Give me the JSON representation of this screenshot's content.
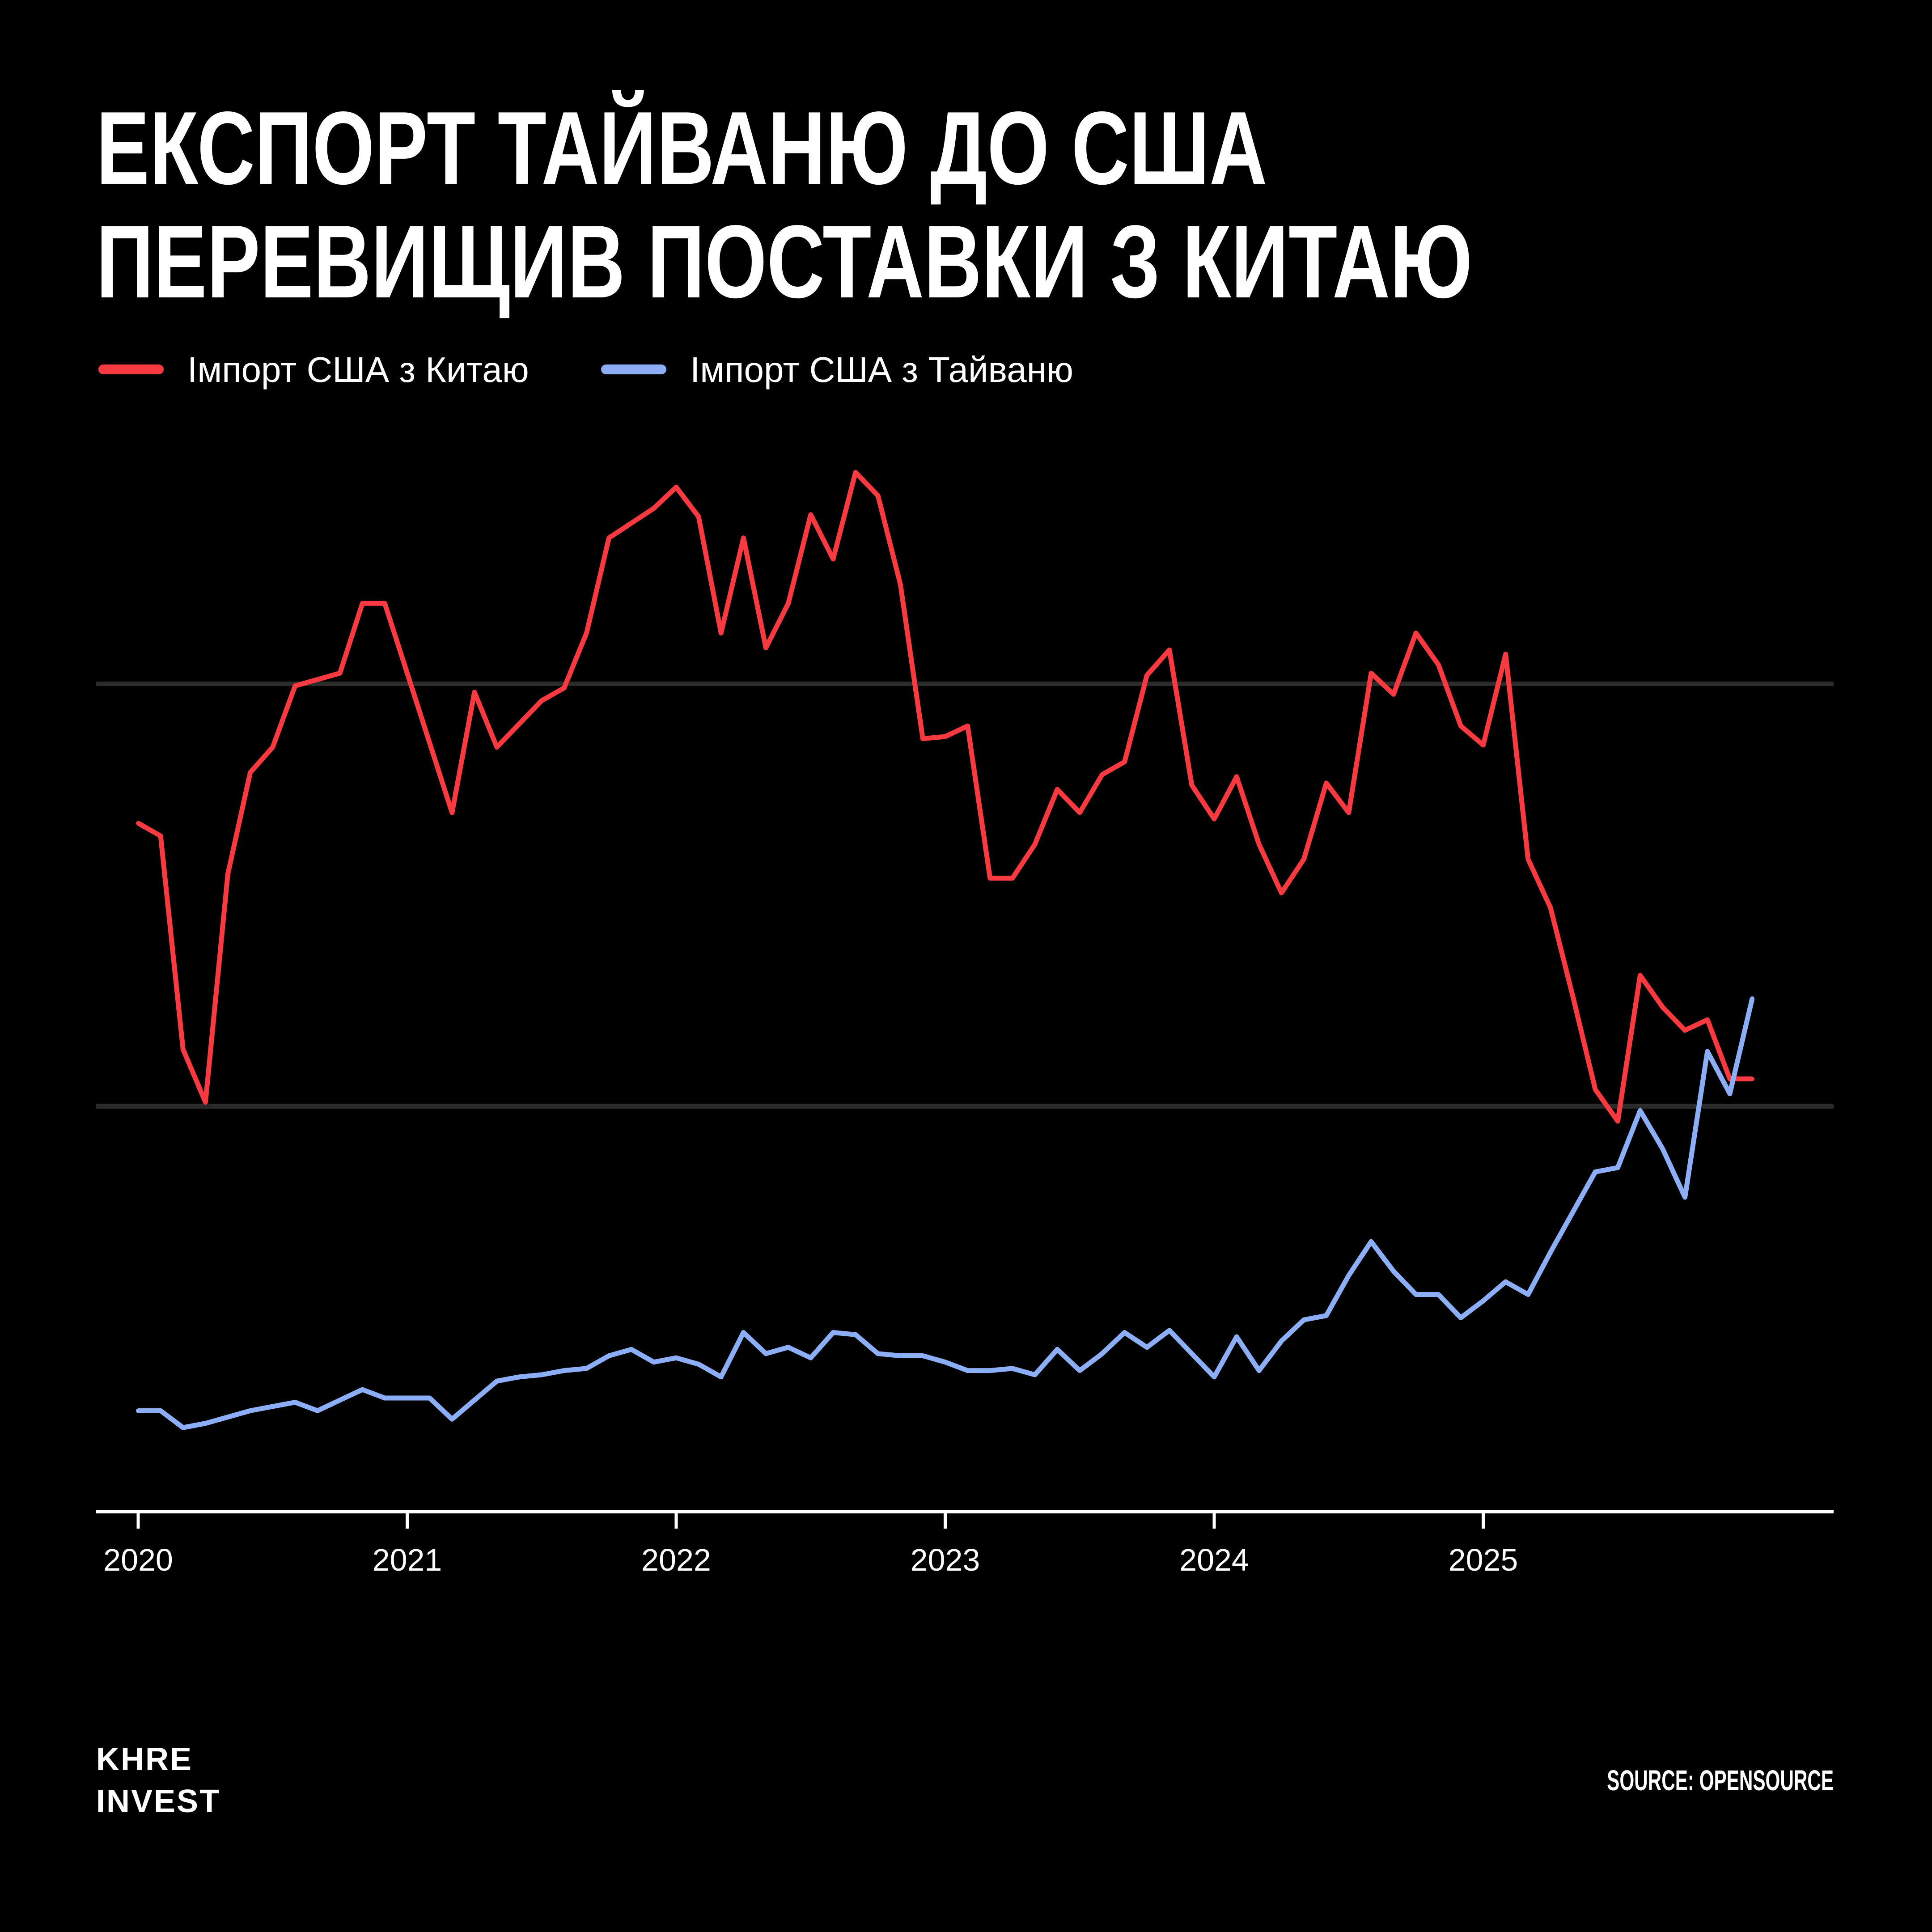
{
  "colors": {
    "background": "#000000",
    "text": "#FFFFFF",
    "grid": "#2A2A2A",
    "axis": "#FFFFFF"
  },
  "chart_data": {
    "type": "line",
    "title_lines": [
      "ЕКСПОРТ ТАЙВАНЮ ДО США",
      "ПЕРЕВИЩИВ ПОСТАВКИ З КИТАЮ"
    ],
    "legend": "top-left",
    "grid": true,
    "y_gridlines": [
      20,
      40
    ],
    "ylim": [
      0,
      55
    ],
    "x_ticks": [
      "2020",
      "2021",
      "2022",
      "2023",
      "2024",
      "2025"
    ],
    "x": [
      "2020-01",
      "2020-02",
      "2020-03",
      "2020-04",
      "2020-05",
      "2020-06",
      "2020-07",
      "2020-08",
      "2020-09",
      "2020-10",
      "2020-11",
      "2020-12",
      "2021-01",
      "2021-02",
      "2021-03",
      "2021-04",
      "2021-05",
      "2021-06",
      "2021-07",
      "2021-08",
      "2021-09",
      "2021-10",
      "2021-11",
      "2021-12",
      "2022-01",
      "2022-02",
      "2022-03",
      "2022-04",
      "2022-05",
      "2022-06",
      "2022-07",
      "2022-08",
      "2022-09",
      "2022-10",
      "2022-11",
      "2022-12",
      "2023-01",
      "2023-02",
      "2023-03",
      "2023-04",
      "2023-05",
      "2023-06",
      "2023-07",
      "2023-08",
      "2023-09",
      "2023-10",
      "2023-11",
      "2023-12",
      "2024-01",
      "2024-02",
      "2024-03",
      "2024-04",
      "2024-05",
      "2024-06",
      "2024-07",
      "2024-08",
      "2024-09",
      "2024-10",
      "2024-11",
      "2024-12",
      "2025-01",
      "2025-02",
      "2025-03",
      "2025-04",
      "2025-05",
      "2025-06",
      "2025-07",
      "2025-08",
      "2025-09",
      "2025-10",
      "2025-11",
      "2025-12",
      "2026-01"
    ],
    "series": [
      {
        "name": "Імпорт США з Китаю",
        "color": "#F8393F",
        "values": [
          33.4,
          32.8,
          22.7,
          20.2,
          31.0,
          35.8,
          37.0,
          39.9,
          40.2,
          40.5,
          43.8,
          43.8,
          40.5,
          37.2,
          33.9,
          39.6,
          37.0,
          38.1,
          39.2,
          39.8,
          42.4,
          46.9,
          47.6,
          48.3,
          49.3,
          47.9,
          42.4,
          46.9,
          41.7,
          43.8,
          48.0,
          45.9,
          50.0,
          48.9,
          44.7,
          37.4,
          37.5,
          38.0,
          30.8,
          30.8,
          32.4,
          35.0,
          33.9,
          35.7,
          36.3,
          40.4,
          41.6,
          35.2,
          33.6,
          35.6,
          32.4,
          30.1,
          31.7,
          35.3,
          33.9,
          40.5,
          39.5,
          42.4,
          40.9,
          38.0,
          37.1,
          41.4,
          31.7,
          29.4,
          25.2,
          20.8,
          19.3,
          26.2,
          24.7,
          23.6,
          24.1,
          21.3,
          21.3
        ]
      },
      {
        "name": "Імпорт США з Тайваню",
        "color": "#8CAEF6",
        "values": [
          5.6,
          5.6,
          4.8,
          5.0,
          5.3,
          5.6,
          5.8,
          6.0,
          5.6,
          6.1,
          6.6,
          6.2,
          6.2,
          6.2,
          5.2,
          6.1,
          7.0,
          7.2,
          7.3,
          7.5,
          7.6,
          8.2,
          8.5,
          7.9,
          8.1,
          7.8,
          7.2,
          9.3,
          8.3,
          8.6,
          8.1,
          9.3,
          9.2,
          8.3,
          8.2,
          8.2,
          7.9,
          7.5,
          7.5,
          7.6,
          7.3,
          8.5,
          7.5,
          8.3,
          9.3,
          8.6,
          9.4,
          8.3,
          7.2,
          9.1,
          7.5,
          8.9,
          9.9,
          10.1,
          12.0,
          13.6,
          12.2,
          11.1,
          11.1,
          10.0,
          10.8,
          11.7,
          11.1,
          13.1,
          15.0,
          16.9,
          17.1,
          19.8,
          18.0,
          15.7,
          22.6,
          20.6,
          25.1
        ]
      }
    ]
  },
  "brand": {
    "line1": "KHRE",
    "line2": "INVEST"
  },
  "source": "SOURCE: OPENSOURCE"
}
